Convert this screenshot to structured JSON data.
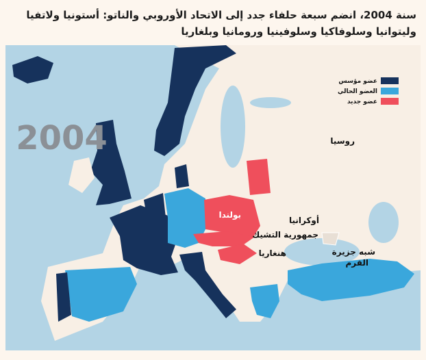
{
  "header": {
    "title_lines": [
      "سنة 2004، انضم سبعة حلفاء جدد إلى الاتحاد الأوروبي والناتو: أستونيا ولاتفيا",
      "وليتوانيا وسلوفاكيا وسلوفينيا ورومانيا وبلغاريا"
    ]
  },
  "map": {
    "year": "2004",
    "legend": [
      "عضو مؤسس",
      "العضو الحالي",
      "عضو جديد"
    ],
    "labels": {
      "russia": "روسيا",
      "poland": "بولندا",
      "ukraine": "أوكرانيا",
      "czech": "جمهورية التشيك",
      "hungary": "هنغاريا",
      "crimea": [
        "شبه جزيرة",
        "القرم"
      ]
    }
  }
}
